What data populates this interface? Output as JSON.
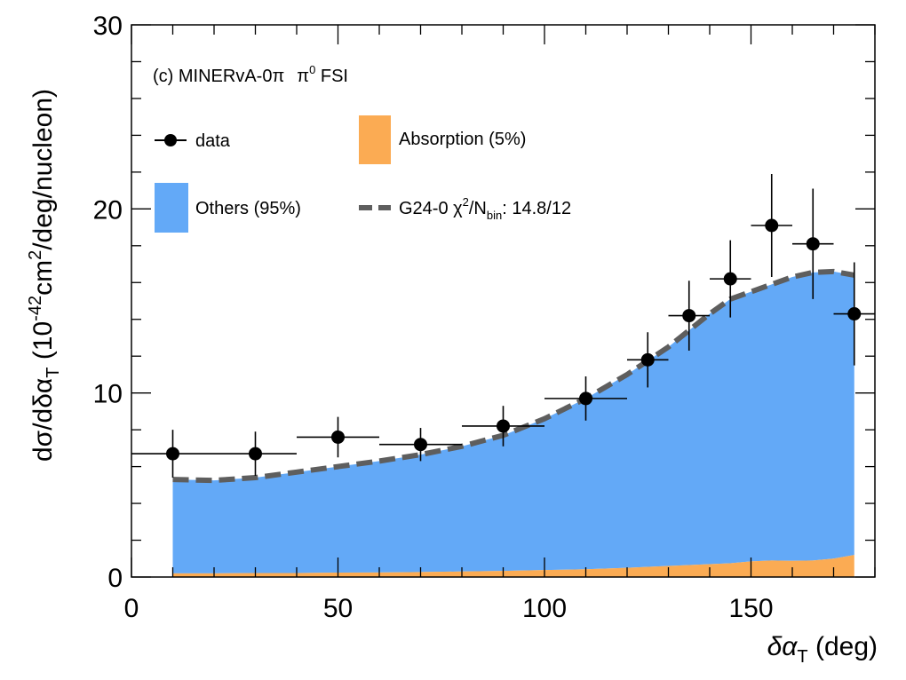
{
  "chart_data": {
    "type": "area",
    "annotation": "(c) MINERvA-0π",
    "annotation_extra": "π",
    "annotation_extra_sup": "0",
    "annotation_extra_tail": " FSI",
    "xlabel_main": "δα",
    "xlabel_sub": "T",
    "xlabel_tail": " (deg)",
    "ylabel_parts": {
      "a": "dσ/dδα",
      "b": "T",
      "c": " (10",
      "d": "-42",
      "e": "cm",
      "f": "2",
      "g": "/deg/nucleon)"
    },
    "xlim": [
      0,
      180
    ],
    "ylim": [
      0,
      30
    ],
    "xticks": [
      "0",
      "50",
      "100",
      "150"
    ],
    "yticks": [
      "0",
      "10",
      "20",
      "30"
    ],
    "legend": {
      "data_label": "data",
      "absorption_label": "Absorption (5%)",
      "others_label": "Others (95%)",
      "model_label_a": "G24-0 χ",
      "model_label_sup": "2",
      "model_label_b": "/N",
      "model_label_sub": "bin",
      "model_label_c": ": 14.8/12"
    },
    "colors": {
      "others": "#63a9f7",
      "absorption": "#fbab53",
      "model_line": "#5e5e5e",
      "data": "#000000"
    },
    "data_points": [
      {
        "x": 10,
        "y": 6.7,
        "xerr": [
          0,
          20
        ],
        "yerr": 1.3
      },
      {
        "x": 30,
        "y": 6.7,
        "xerr": [
          20,
          40
        ],
        "yerr": 1.2
      },
      {
        "x": 50,
        "y": 7.6,
        "xerr": [
          40,
          60
        ],
        "yerr": 1.1
      },
      {
        "x": 70,
        "y": 7.2,
        "xerr": [
          60,
          80
        ],
        "yerr": 0.9
      },
      {
        "x": 90,
        "y": 8.2,
        "xerr": [
          80,
          100
        ],
        "yerr": 1.1
      },
      {
        "x": 110,
        "y": 9.7,
        "xerr": [
          100,
          120
        ],
        "yerr": 1.2
      },
      {
        "x": 125,
        "y": 11.8,
        "xerr": [
          120,
          130
        ],
        "yerr": 1.5
      },
      {
        "x": 135,
        "y": 14.2,
        "xerr": [
          130,
          140
        ],
        "yerr": 1.9
      },
      {
        "x": 145,
        "y": 16.2,
        "xerr": [
          140,
          150
        ],
        "yerr": 2.1
      },
      {
        "x": 155,
        "y": 19.1,
        "xerr": [
          150,
          160
        ],
        "yerr": 2.8
      },
      {
        "x": 165,
        "y": 18.1,
        "xerr": [
          160,
          170
        ],
        "yerr": 3.0
      },
      {
        "x": 175,
        "y": 14.3,
        "xerr": [
          170,
          180
        ],
        "yerr": 2.8
      }
    ],
    "model_curve": {
      "x": [
        10,
        20,
        30,
        40,
        50,
        60,
        70,
        80,
        90,
        100,
        110,
        120,
        130,
        140,
        145,
        150,
        155,
        160,
        165,
        170,
        175
      ],
      "total": [
        5.3,
        5.25,
        5.4,
        5.7,
        6.0,
        6.3,
        6.65,
        7.1,
        7.7,
        8.6,
        9.7,
        11.0,
        12.5,
        14.3,
        15.1,
        15.5,
        15.9,
        16.3,
        16.55,
        16.6,
        16.4
      ],
      "absorption": [
        0.2,
        0.2,
        0.22,
        0.22,
        0.24,
        0.25,
        0.27,
        0.3,
        0.33,
        0.38,
        0.42,
        0.5,
        0.6,
        0.7,
        0.75,
        0.85,
        0.9,
        0.88,
        0.9,
        1.0,
        1.2
      ]
    }
  }
}
